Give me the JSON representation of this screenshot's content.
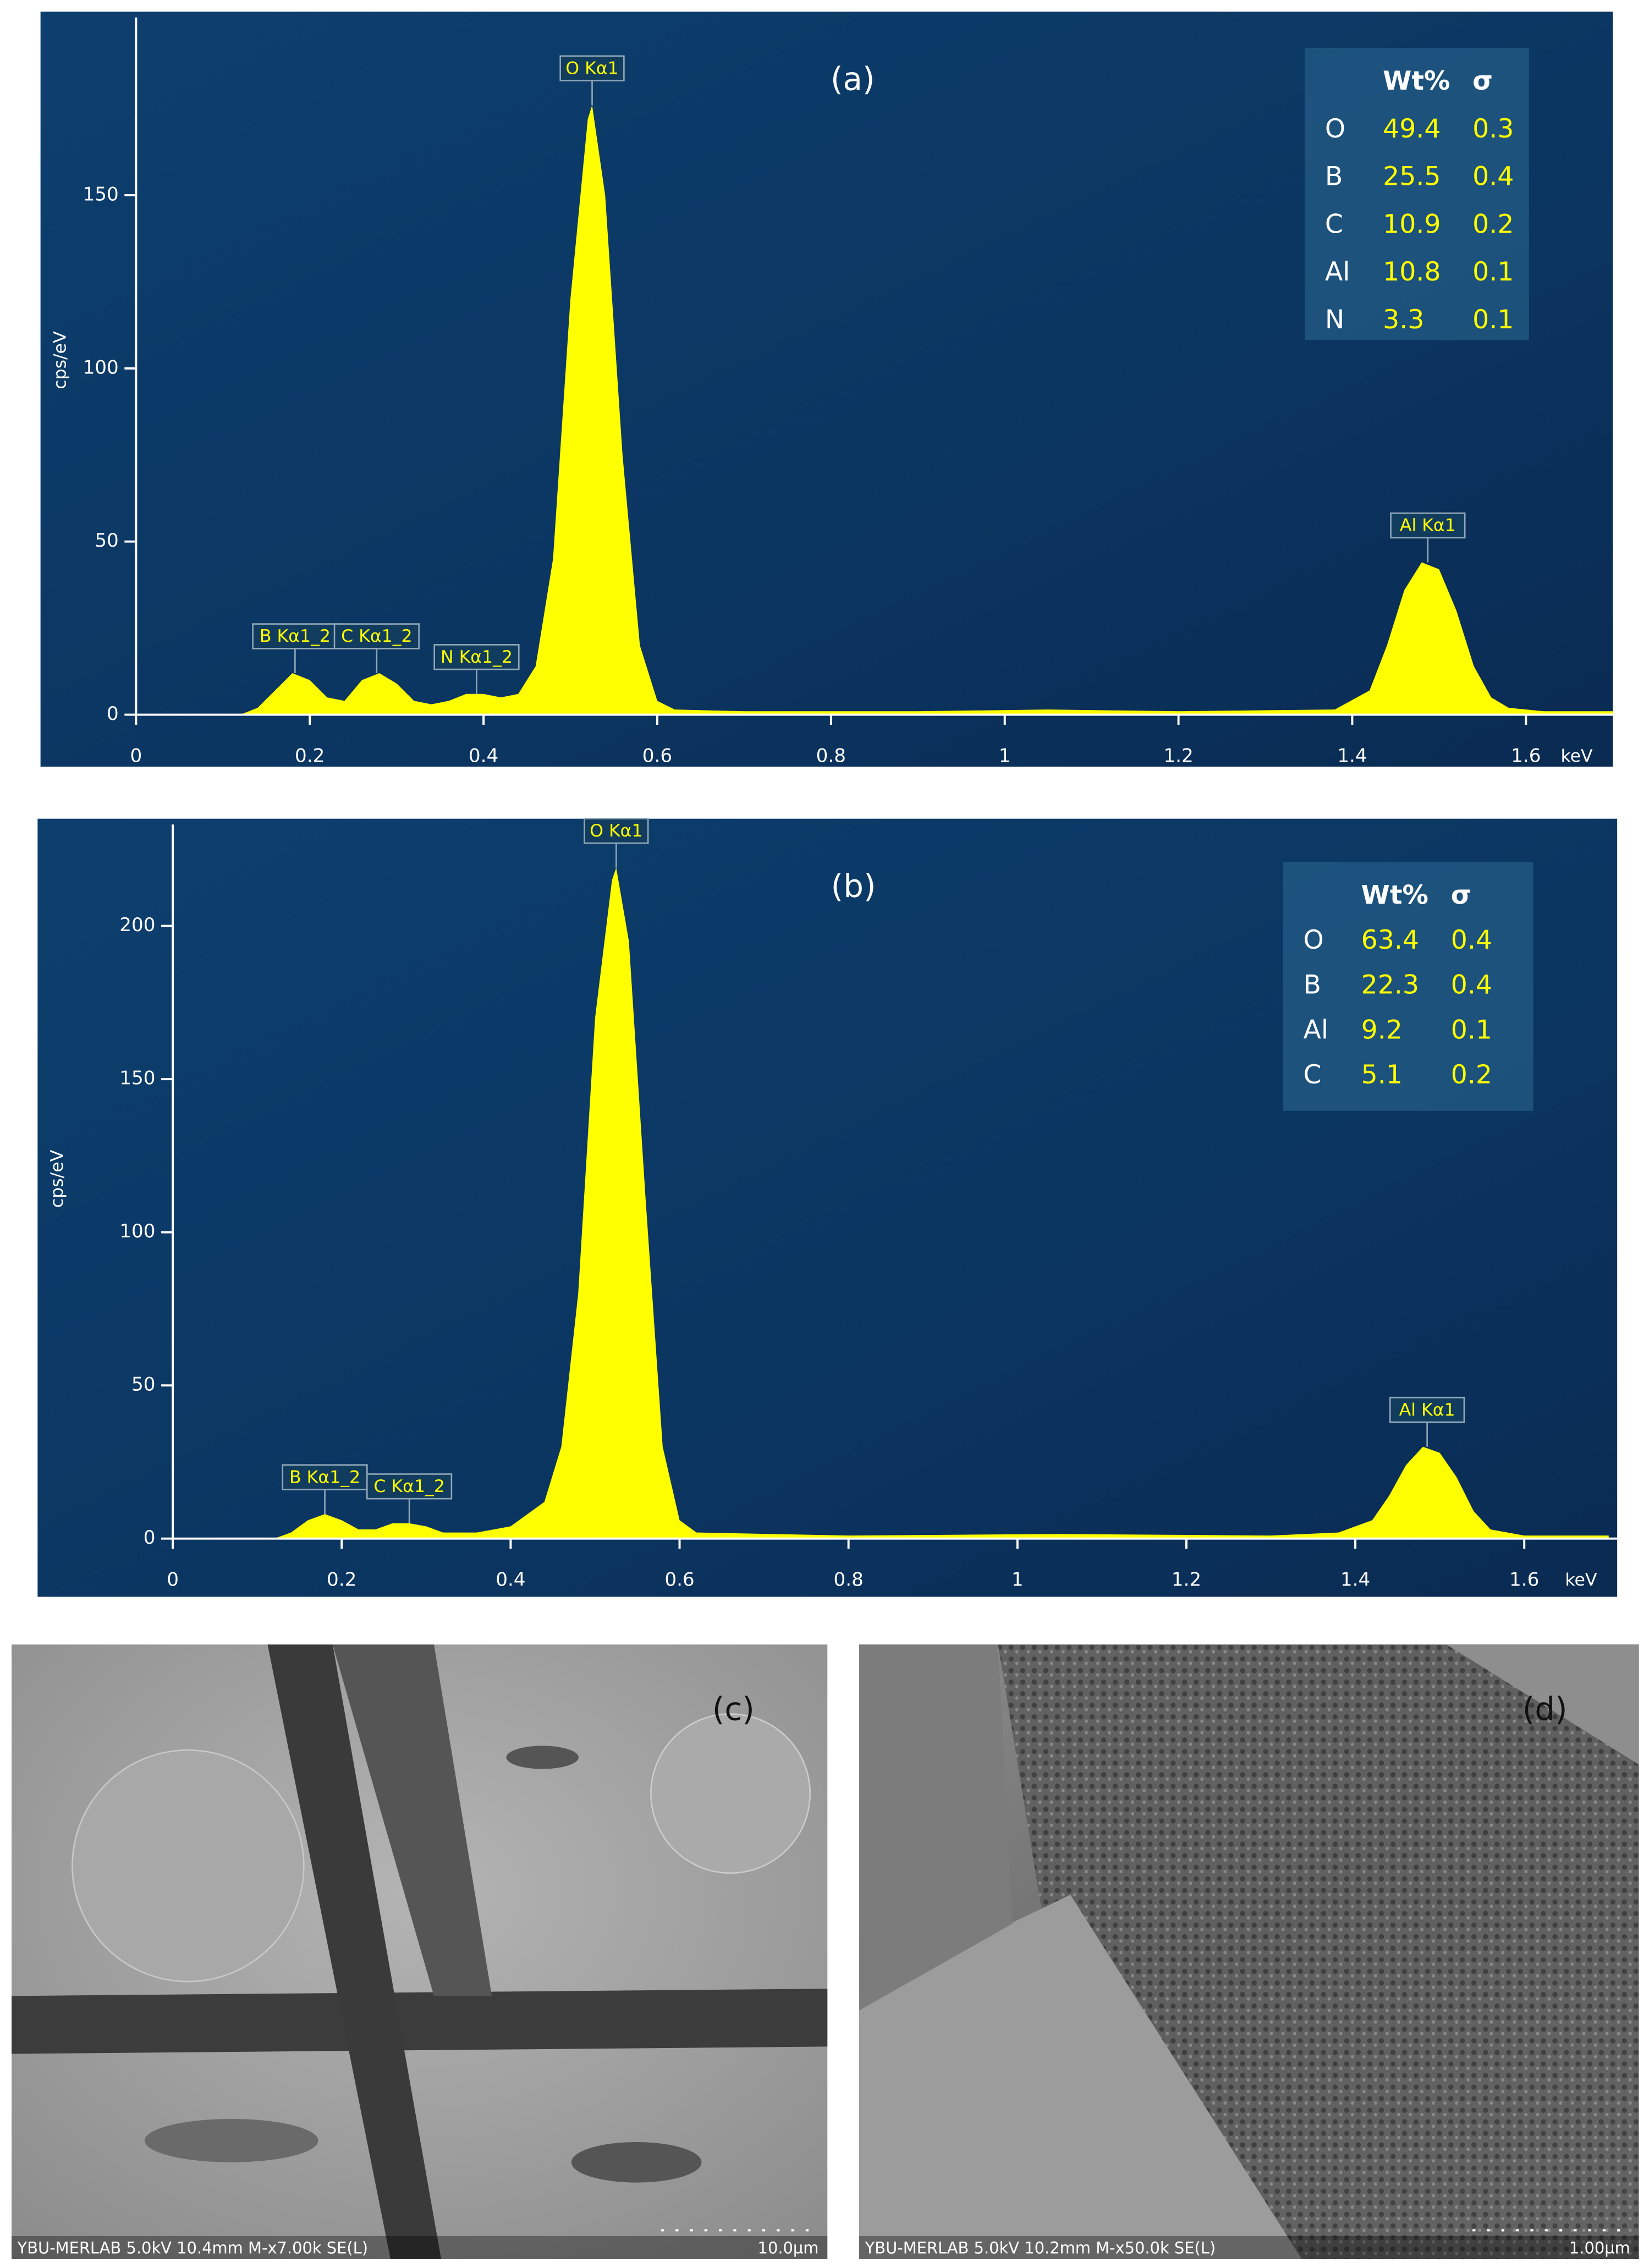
{
  "chart_data": [
    {
      "type": "area",
      "panel": "(a)",
      "y_label": "cps/eV",
      "x_label": "keV",
      "color": "#ffff00",
      "x": [
        0.12,
        0.14,
        0.16,
        0.18,
        0.2,
        0.22,
        0.24,
        0.26,
        0.28,
        0.3,
        0.32,
        0.34,
        0.36,
        0.38,
        0.4,
        0.42,
        0.44,
        0.46,
        0.48,
        0.5,
        0.52,
        0.525,
        0.54,
        0.56,
        0.58,
        0.6,
        0.62,
        0.7,
        0.9,
        1.05,
        1.2,
        1.38,
        1.42,
        1.44,
        1.46,
        1.48,
        1.5,
        1.52,
        1.54,
        1.56,
        1.58,
        1.62,
        1.7
      ],
      "values": [
        0,
        2,
        7,
        12,
        10,
        5,
        4,
        10,
        12,
        9,
        4,
        3,
        4,
        6,
        6,
        5,
        6,
        14,
        45,
        120,
        172,
        176,
        150,
        75,
        20,
        4,
        1.5,
        1,
        1,
        1.5,
        1,
        1.5,
        7,
        20,
        36,
        44,
        42,
        30,
        14,
        5,
        2,
        1,
        1
      ],
      "xlim": [
        -0.11,
        1.7
      ],
      "ylim": [
        -15,
        203
      ],
      "xticks": [
        0,
        0.2,
        0.4,
        0.6,
        0.8,
        1,
        1.2,
        1.4,
        1.6
      ],
      "yticks": [
        0,
        50,
        100,
        150
      ],
      "annotations": [
        {
          "text": "B Kα1_2",
          "x": 0.183,
          "y": 12
        },
        {
          "text": "C Kα1_2",
          "x": 0.277,
          "y": 12
        },
        {
          "text": "N Kα1_2",
          "x": 0.392,
          "y": 6
        },
        {
          "text": "O Kα1",
          "x": 0.525,
          "y": 176
        },
        {
          "text": "Al Kα1",
          "x": 1.487,
          "y": 44
        }
      ],
      "table": {
        "header": [
          "Wt%",
          "σ"
        ],
        "rows": [
          [
            "O",
            49.4,
            0.3
          ],
          [
            "B",
            25.5,
            0.4
          ],
          [
            "C",
            10.9,
            0.2
          ],
          [
            "Al",
            10.8,
            0.1
          ],
          [
            "N",
            3.3,
            0.1
          ]
        ]
      }
    },
    {
      "type": "area",
      "panel": "(b)",
      "y_label": "cps/eV",
      "x_label": "keV",
      "color": "#ffff00",
      "x": [
        0.12,
        0.14,
        0.16,
        0.18,
        0.2,
        0.22,
        0.24,
        0.26,
        0.28,
        0.3,
        0.32,
        0.36,
        0.4,
        0.44,
        0.46,
        0.48,
        0.5,
        0.52,
        0.525,
        0.54,
        0.56,
        0.58,
        0.6,
        0.62,
        0.8,
        1.05,
        1.3,
        1.38,
        1.42,
        1.44,
        1.46,
        1.48,
        1.5,
        1.52,
        1.54,
        1.56,
        1.6,
        1.7
      ],
      "values": [
        0,
        2,
        6,
        8,
        6,
        3,
        3,
        5,
        5,
        4,
        2,
        2,
        4,
        12,
        30,
        80,
        170,
        215,
        219,
        195,
        110,
        30,
        6,
        2,
        1,
        1.5,
        1,
        2,
        6,
        14,
        24,
        30,
        28,
        20,
        9,
        3,
        1,
        1
      ],
      "xlim": [
        -0.16,
        1.71
      ],
      "ylim": [
        -19,
        235
      ],
      "xticks": [
        0,
        0.2,
        0.4,
        0.6,
        0.8,
        1,
        1.2,
        1.4,
        1.6
      ],
      "yticks": [
        0,
        50,
        100,
        150,
        200
      ],
      "annotations": [
        {
          "text": "B Kα1_2",
          "x": 0.18,
          "y": 8
        },
        {
          "text": "C Kα1_2",
          "x": 0.28,
          "y": 5
        },
        {
          "text": "O Kα1",
          "x": 0.525,
          "y": 219
        },
        {
          "text": "Al Kα1",
          "x": 1.485,
          "y": 30
        }
      ],
      "table": {
        "header": [
          "Wt%",
          "σ"
        ],
        "rows": [
          [
            "O",
            63.4,
            0.4
          ],
          [
            "B",
            22.3,
            0.4
          ],
          [
            "Al",
            9.2,
            0.1
          ],
          [
            "C",
            5.1,
            0.2
          ]
        ]
      }
    }
  ],
  "images": [
    {
      "panel": "(c)",
      "caption": "YBU-MERLAB 5.0kV 10.4mm M-x7.00k SE(L)",
      "scale": "10.0µm"
    },
    {
      "panel": "(d)",
      "caption": "YBU-MERLAB 5.0kV 10.2mm M-x50.0k SE(L)",
      "scale": "1.00µm"
    }
  ]
}
